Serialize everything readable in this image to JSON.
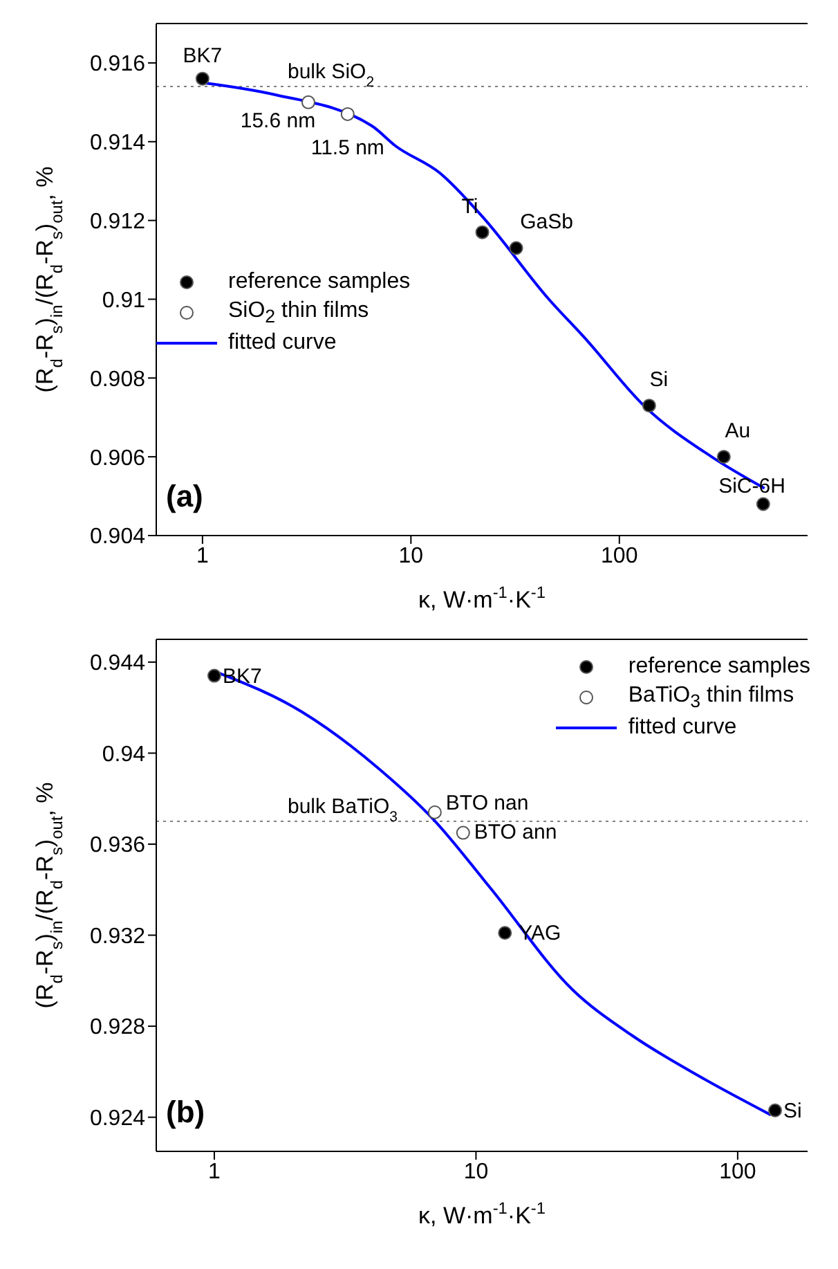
{
  "chart_data": [
    {
      "type": "scatter",
      "xlabel": "κ, W·m$^{-1}$·K$^{-1}$",
      "ylabel": "(R$_{d}$-R$_{s}$)$_{in}$/(R$_{d}$-R$_{s}$)$_{out}$, %",
      "log": "x",
      "xlim": [
        0.6,
        800
      ],
      "xticks": [
        1,
        10,
        100
      ],
      "ylim": [
        0.904,
        0.917
      ],
      "yticks": [
        0.904,
        0.906,
        0.908,
        0.91,
        0.912,
        0.914,
        0.916
      ],
      "legend": "left",
      "series": [
        {
          "name": "reference samples",
          "marker": "circle",
          "color": "#000000",
          "x": [
            1,
            22,
            32,
            139,
            317,
            490
          ],
          "values": [
            0.9156,
            0.9117,
            0.9113,
            0.9073,
            0.906,
            0.9048
          ]
        },
        {
          "name": "SiO$_{2}$ thin films",
          "marker": "circle",
          "color": "#ffffff",
          "x": [
            3.22,
            4.97
          ],
          "values": [
            0.915,
            0.9147
          ]
        },
        {
          "name": "fitted curve",
          "type": "line",
          "marker": "none",
          "color": "#0000ff",
          "x": [
            1,
            2.2,
            6.5,
            8.4,
            13.8,
            22,
            45.9,
            68.7,
            131,
            277,
            497
          ],
          "values": [
            0.9155,
            0.9152,
            0.9144,
            0.9139,
            0.9132,
            0.9121,
            0.91,
            0.909,
            0.9073,
            0.906,
            0.9052
          ]
        }
      ],
      "ref_lines": [
        {
          "axis": "y",
          "value": 0.9154,
          "label": "bulk SiO$_{2}$",
          "color": "#808080",
          "line_style": "dotted"
        }
      ],
      "annotations": [
        {
          "text": "BK7",
          "x": 1,
          "y": 0.9156
        },
        {
          "text": "15.6 nm",
          "x": 3.22,
          "y": 0.915
        },
        {
          "text": "11.5 nm",
          "x": 4.97,
          "y": 0.9147
        },
        {
          "text": "Ti",
          "x": 22,
          "y": 0.9117
        },
        {
          "text": "GaSb",
          "x": 32,
          "y": 0.9113
        },
        {
          "text": "Si",
          "x": 139,
          "y": 0.9073
        },
        {
          "text": "Au",
          "x": 317,
          "y": 0.906
        },
        {
          "text": "SiC-6H",
          "x": 490,
          "y": 0.9048
        },
        "(a)"
      ]
    },
    {
      "type": "scatter",
      "xlabel": "κ, W·m$^{-1}$·K$^{-1}$",
      "ylabel": "(R$_{d}$-R$_{s}$)$_{in}$/(R$_{d}$-R$_{s}$)$_{out}$, %",
      "log": "x",
      "xlim": [
        0.6,
        185
      ],
      "xticks": [
        1,
        10,
        100
      ],
      "ylim": [
        0.9225,
        0.945
      ],
      "yticks": [
        0.924,
        0.928,
        0.932,
        0.936,
        0.94,
        0.944
      ],
      "legend": "top right",
      "series": [
        {
          "name": "reference samples",
          "marker": "circle",
          "color": "#000000",
          "x": [
            1,
            12.9,
            139
          ],
          "values": [
            0.9434,
            0.9321,
            0.9243
          ]
        },
        {
          "name": "BaTiO$_{3}$ thin films",
          "marker": "circle",
          "color": "#ffffff",
          "x": [
            6.96,
            8.93
          ],
          "values": [
            0.9374,
            0.9365
          ]
        },
        {
          "name": "fitted curve",
          "type": "line",
          "marker": "none",
          "color": "#0000ff",
          "x": [
            1,
            2.17,
            4.27,
            6.86,
            11.3,
            23.4,
            39.4,
            71.4,
            134
          ],
          "values": [
            0.9436,
            0.9418,
            0.9393,
            0.9371,
            0.9341,
            0.9296,
            0.9276,
            0.9258,
            0.9241
          ]
        }
      ],
      "ref_lines": [
        {
          "axis": "y",
          "value": 0.937,
          "label": "bulk BaTiO$_{3}$",
          "color": "#808080",
          "line_style": "dotted"
        }
      ],
      "annotations": [
        {
          "text": "BK7",
          "x": 1,
          "y": 0.9434
        },
        {
          "text": "BTO nan",
          "x": 6.96,
          "y": 0.9374
        },
        {
          "text": "BTO ann",
          "x": 8.93,
          "y": 0.9365
        },
        {
          "text": "YAG",
          "x": 12.9,
          "y": 0.9321
        },
        {
          "text": "Si",
          "x": 139,
          "y": 0.9243
        },
        "(b)"
      ]
    }
  ]
}
